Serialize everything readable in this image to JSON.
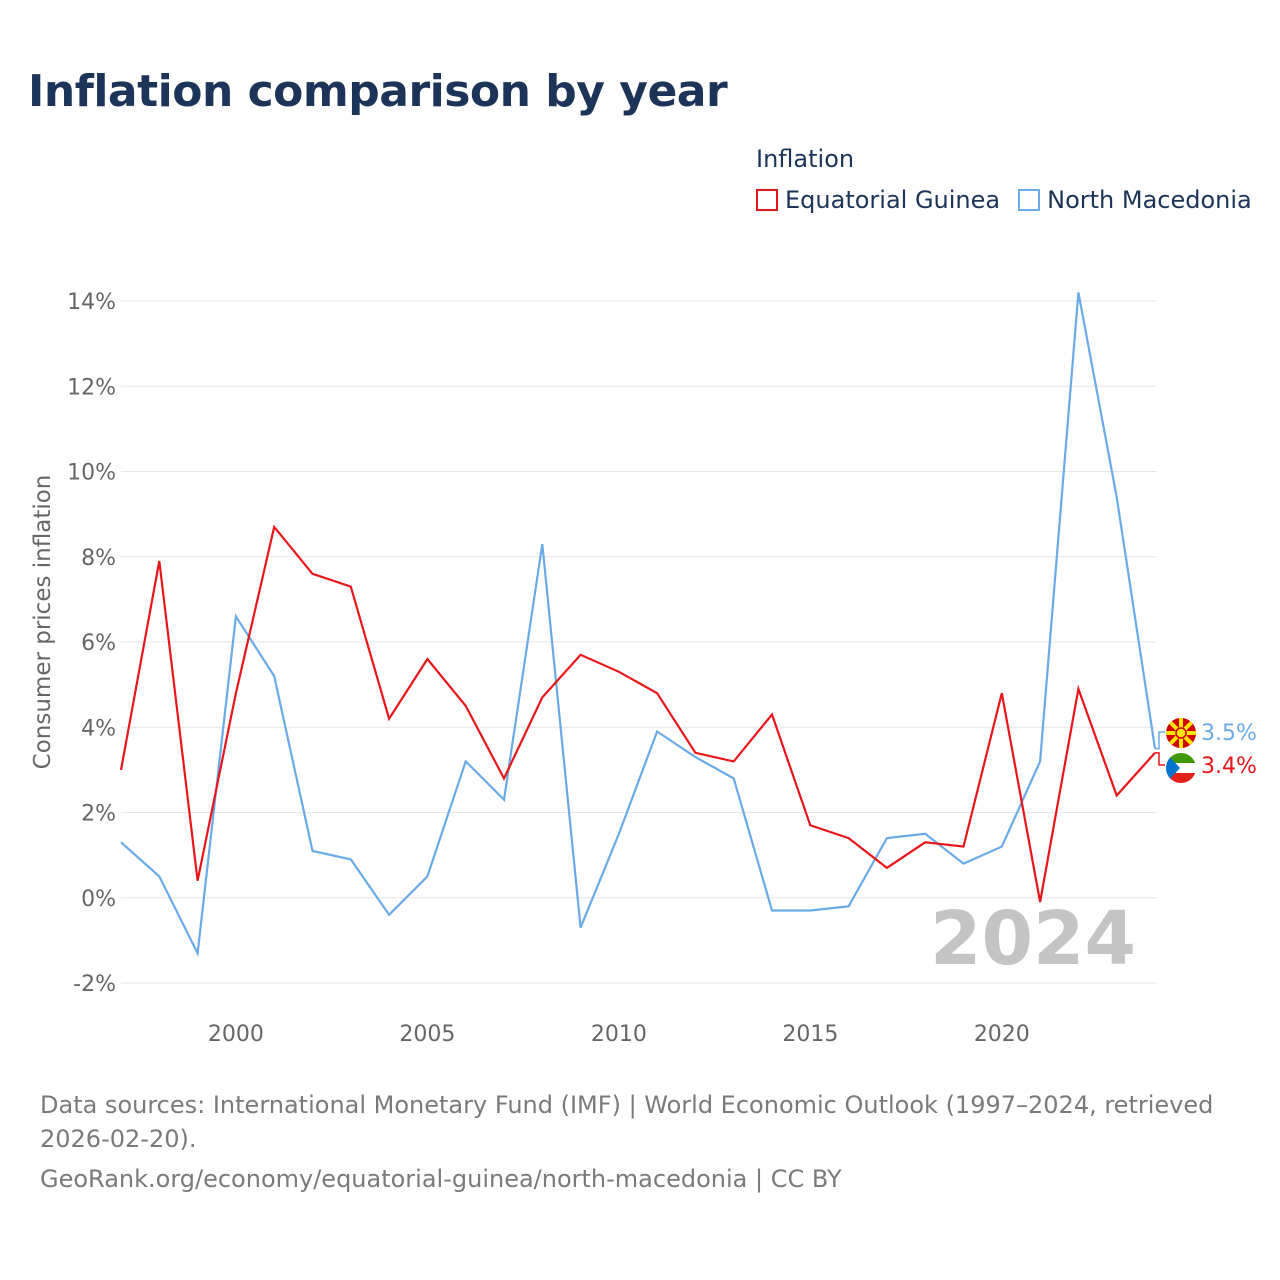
{
  "title": "Inflation comparison by year",
  "legend": {
    "title": "Inflation",
    "items": [
      {
        "name": "Equatorial Guinea",
        "color": "#e8161b"
      },
      {
        "name": "North Macedonia",
        "color": "#6aaae6"
      }
    ]
  },
  "watermark_year": "2024",
  "footer": {
    "sources": "Data sources: International Monetary Fund (IMF) | World Economic Outlook (1997–2024, retrieved 2026-02-20).",
    "credit": "GeoRank.org/economy/equatorial-guinea/north-macedonia | CC BY"
  },
  "chart_data": {
    "type": "line",
    "title": "Inflation comparison by year",
    "xlabel": "",
    "ylabel": "Consumer prices inflation",
    "xlim": [
      1997,
      2024
    ],
    "ylim": [
      -2,
      14
    ],
    "x_ticks": [
      2000,
      2005,
      2010,
      2015,
      2020
    ],
    "x_tick_labels": [
      "2000",
      "2005",
      "2010",
      "2015",
      "2020"
    ],
    "y_ticks": [
      -2,
      0,
      2,
      4,
      6,
      8,
      10,
      12,
      14
    ],
    "y_tick_labels": [
      "-2%",
      "0%",
      "2%",
      "4%",
      "6%",
      "8%",
      "10%",
      "12%",
      "14%"
    ],
    "grid": true,
    "x": [
      1997,
      1998,
      1999,
      2000,
      2001,
      2002,
      2003,
      2004,
      2005,
      2006,
      2007,
      2008,
      2009,
      2010,
      2011,
      2012,
      2013,
      2014,
      2015,
      2016,
      2017,
      2018,
      2019,
      2020,
      2021,
      2022,
      2023,
      2024
    ],
    "series": [
      {
        "name": "Equatorial Guinea",
        "color": "#e8161b",
        "values": [
          3.0,
          7.9,
          0.4,
          4.8,
          8.7,
          7.6,
          7.3,
          4.2,
          5.6,
          4.5,
          2.8,
          4.7,
          5.7,
          5.3,
          4.8,
          3.4,
          3.2,
          4.3,
          1.7,
          1.4,
          0.7,
          1.3,
          1.2,
          4.8,
          -0.1,
          4.9,
          2.4,
          3.4
        ],
        "end_label": "3.4%"
      },
      {
        "name": "North Macedonia",
        "color": "#6aaae6",
        "values": [
          1.3,
          0.5,
          -1.3,
          6.6,
          5.2,
          1.1,
          0.9,
          -0.4,
          0.5,
          3.2,
          2.3,
          8.3,
          -0.7,
          1.5,
          3.9,
          3.3,
          2.8,
          -0.3,
          -0.3,
          -0.2,
          1.4,
          1.5,
          0.8,
          1.2,
          3.2,
          14.2,
          9.4,
          3.5
        ],
        "end_label": "3.5%"
      }
    ]
  }
}
